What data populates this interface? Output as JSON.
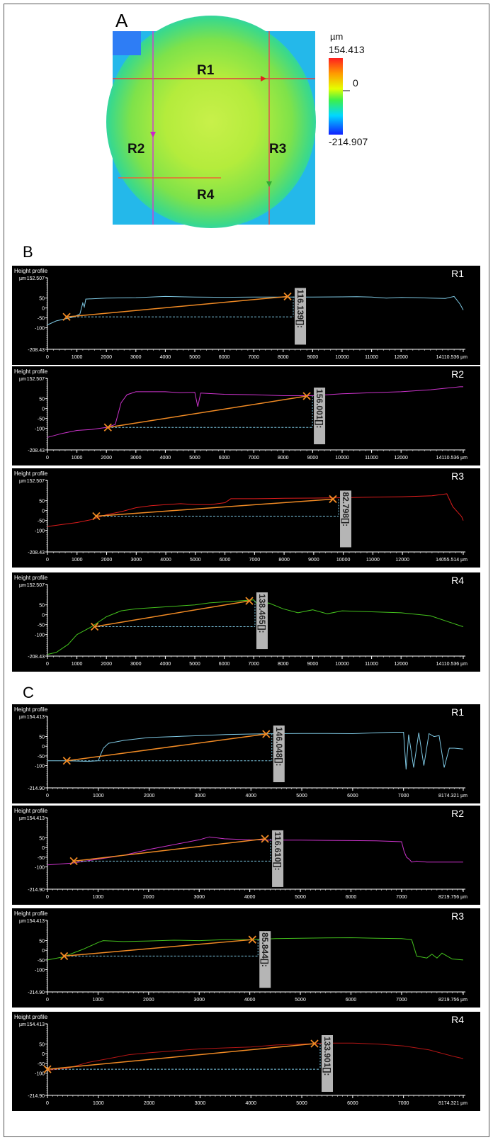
{
  "panels": {
    "a": "A",
    "b": "B",
    "c": "C"
  },
  "heightmap": {
    "unit": "µm",
    "max": "154.413",
    "zero": "0",
    "min": "-214.907",
    "labels": [
      "R1",
      "R2",
      "R3",
      "R4"
    ]
  },
  "common": {
    "title": "Height profile",
    "unit": "µm"
  },
  "chart_data": [
    {
      "type": "line",
      "id": "B-R1",
      "label": "R1",
      "color": "#7ec8e3",
      "ylim": [
        -208.43,
        152.507
      ],
      "ytick_labels": [
        "152.507",
        "50",
        "0",
        "-50",
        "-100",
        "-208.43"
      ],
      "xlim": [
        0,
        14110.536
      ],
      "xticks": [
        0,
        1000,
        2000,
        3000,
        4000,
        5000,
        6000,
        7000,
        8000,
        9000,
        10000,
        11000,
        12000
      ],
      "x_end_label": "14110.536 µm",
      "x": [
        0,
        300,
        600,
        900,
        1100,
        1200,
        1250,
        1300,
        2000,
        3000,
        4000,
        5000,
        6000,
        7000,
        8000,
        9000,
        10000,
        10500,
        11000,
        11500,
        12000,
        12500,
        13000,
        13500,
        13800,
        14000,
        14110
      ],
      "y": [
        -85,
        -65,
        -55,
        -45,
        -30,
        25,
        5,
        45,
        50,
        52,
        58,
        55,
        54,
        55,
        55,
        55,
        56,
        57,
        55,
        50,
        53,
        52,
        50,
        48,
        58,
        20,
        -10
      ],
      "markers": {
        "p1": [
          650,
          -45
        ],
        "p2": [
          8150,
          58
        ]
      },
      "delta_label": "116.139[]:"
    },
    {
      "type": "line",
      "id": "B-R2",
      "label": "R2",
      "color": "#cc33cc",
      "ylim": [
        -208.43,
        152.507
      ],
      "ytick_labels": [
        "152.507",
        "50",
        "0",
        "-50",
        "-100",
        "-208.43"
      ],
      "xlim": [
        0,
        14110.536
      ],
      "xticks": [
        0,
        1000,
        2000,
        3000,
        4000,
        5000,
        6000,
        7000,
        8000,
        9000,
        10000,
        11000,
        12000
      ],
      "x_end_label": "14110.536 µm",
      "x": [
        0,
        500,
        1000,
        1500,
        2000,
        2300,
        2500,
        2700,
        3000,
        4000,
        4500,
        5000,
        5100,
        5200,
        6000,
        7000,
        8000,
        9000,
        10000,
        11000,
        12000,
        13000,
        14000,
        14110
      ],
      "y": [
        -145,
        -125,
        -110,
        -105,
        -95,
        -80,
        30,
        70,
        85,
        85,
        80,
        82,
        10,
        78,
        72,
        70,
        65,
        65,
        75,
        80,
        85,
        95,
        110,
        110
      ],
      "markers": {
        "p1": [
          2050,
          -95
        ],
        "p2": [
          8800,
          63
        ]
      },
      "delta_label": "156.001[]:"
    },
    {
      "type": "line",
      "id": "B-R3",
      "label": "R3",
      "color": "#dd1c1c",
      "ylim": [
        -208.43,
        152.507
      ],
      "ytick_labels": [
        "152.507",
        "50",
        "0",
        "-50",
        "-100",
        "-208.43"
      ],
      "xlim": [
        0,
        14055.514
      ],
      "xticks": [
        0,
        1000,
        2000,
        3000,
        4000,
        5000,
        6000,
        7000,
        8000,
        9000,
        10000,
        11000,
        12000
      ],
      "x_end_label": "14055.514 µm",
      "x": [
        0,
        500,
        1000,
        1500,
        2000,
        2500,
        3000,
        3500,
        4000,
        4500,
        5000,
        5500,
        6000,
        6200,
        7000,
        8000,
        9000,
        10000,
        11000,
        12000,
        13000,
        13500,
        13700,
        14000,
        14055
      ],
      "y": [
        -80,
        -70,
        -60,
        -45,
        -20,
        -5,
        15,
        25,
        30,
        35,
        30,
        30,
        40,
        60,
        60,
        62,
        63,
        65,
        68,
        70,
        75,
        85,
        20,
        -30,
        -50
      ],
      "markers": {
        "p1": [
          1650,
          -28
        ],
        "p2": [
          9650,
          58
        ]
      },
      "delta_label": "82.798[]:"
    },
    {
      "type": "line",
      "id": "B-R4",
      "label": "R4",
      "color": "#44c21d",
      "ylim": [
        -208.43,
        152.507
      ],
      "ytick_labels": [
        "152.507",
        "50",
        "0",
        "-50",
        "-100",
        "-208.43"
      ],
      "xlim": [
        0,
        14110.536
      ],
      "xticks": [
        0,
        1000,
        2000,
        3000,
        4000,
        5000,
        6000,
        7000,
        8000,
        9000,
        10000,
        11000,
        12000
      ],
      "x_end_label": "14110.536 µm",
      "x": [
        0,
        300,
        700,
        1000,
        1500,
        2000,
        2500,
        3000,
        3500,
        4000,
        4500,
        5000,
        5500,
        6000,
        6500,
        7000,
        7300,
        7500,
        8000,
        8500,
        9000,
        9500,
        10000,
        11000,
        12000,
        13000,
        14000,
        14110
      ],
      "y": [
        -200,
        -190,
        -150,
        -100,
        -60,
        -10,
        20,
        30,
        35,
        40,
        45,
        50,
        60,
        65,
        70,
        75,
        20,
        60,
        30,
        10,
        25,
        5,
        20,
        15,
        10,
        -5,
        -55,
        -60
      ],
      "markers": {
        "p1": [
          1600,
          -60
        ],
        "p2": [
          6850,
          70
        ]
      },
      "delta_label": "138.465[]:"
    },
    {
      "type": "line",
      "id": "C-R1",
      "label": "R1",
      "color": "#7ec8e3",
      "ylim": [
        -214.907,
        154.413
      ],
      "ytick_labels": [
        "154.413",
        "50",
        "0",
        "-50",
        "-100",
        "-214.90"
      ],
      "xlim": [
        0,
        8174.321
      ],
      "xticks": [
        0,
        1000,
        2000,
        3000,
        4000,
        5000,
        6000,
        7000
      ],
      "x_end_label": "8174.321 µm",
      "x": [
        0,
        400,
        800,
        1000,
        1050,
        1100,
        1200,
        1500,
        2000,
        2500,
        3000,
        3500,
        4000,
        4500,
        5000,
        5500,
        6000,
        6500,
        6800,
        7000,
        7050,
        7100,
        7200,
        7300,
        7400,
        7500,
        7600,
        7700,
        7800,
        7900,
        8000,
        8174
      ],
      "y": [
        -75,
        -75,
        -78,
        -75,
        -40,
        -10,
        15,
        30,
        45,
        50,
        55,
        60,
        63,
        65,
        66,
        66,
        65,
        70,
        72,
        72,
        -120,
        60,
        -110,
        70,
        -100,
        65,
        50,
        55,
        -110,
        -10,
        -10,
        -15
      ],
      "markers": {
        "p1": [
          380,
          -75
        ],
        "p2": [
          4300,
          63
        ]
      },
      "delta_label": "146.048[]:"
    },
    {
      "type": "line",
      "id": "C-R2",
      "label": "R2",
      "color": "#cc33cc",
      "ylim": [
        -214.907,
        154.413
      ],
      "ytick_labels": [
        "154.413",
        "50",
        "0",
        "-50",
        "-100",
        "-214.90"
      ],
      "xlim": [
        0,
        8219.756
      ],
      "xticks": [
        0,
        1000,
        2000,
        3000,
        4000,
        5000,
        6000,
        7000
      ],
      "x_end_label": "8219.756 µm",
      "x": [
        0,
        500,
        1000,
        1500,
        2000,
        2500,
        3000,
        3200,
        3500,
        4000,
        4500,
        5000,
        5500,
        6000,
        6500,
        7000,
        7050,
        7100,
        7150,
        7200,
        7300,
        7500,
        8000,
        8219
      ],
      "y": [
        -90,
        -80,
        -60,
        -40,
        -10,
        15,
        40,
        55,
        45,
        40,
        38,
        38,
        37,
        36,
        35,
        30,
        -20,
        -50,
        -60,
        -75,
        -70,
        -75,
        -75,
        -75
      ],
      "markers": {
        "p1": [
          520,
          -70
        ],
        "p2": [
          4300,
          45
        ]
      },
      "delta_label": "116.610[]:"
    },
    {
      "type": "line",
      "id": "C-R3",
      "label": "R3",
      "color": "#44c21d",
      "ylim": [
        -214.907,
        154.413
      ],
      "ytick_labels": [
        "154.413",
        "50",
        "0",
        "-50",
        "-100",
        "-214.90"
      ],
      "xlim": [
        0,
        8219.756
      ],
      "xticks": [
        0,
        1000,
        2000,
        3000,
        4000,
        5000,
        6000,
        7000
      ],
      "x_end_label": "8219.756 µm",
      "x": [
        0,
        300,
        700,
        1000,
        1100,
        1500,
        2000,
        2500,
        3000,
        3500,
        4000,
        4500,
        5000,
        5500,
        6000,
        6500,
        7000,
        7200,
        7300,
        7500,
        7600,
        7700,
        7800,
        8000,
        8219
      ],
      "y": [
        -50,
        -35,
        5,
        40,
        50,
        45,
        48,
        52,
        50,
        55,
        55,
        60,
        62,
        64,
        65,
        62,
        60,
        55,
        -30,
        -40,
        -20,
        -40,
        -15,
        -45,
        -50
      ],
      "markers": {
        "p1": [
          330,
          -30
        ],
        "p2": [
          4050,
          55
        ]
      },
      "delta_label": "85.844[]:"
    },
    {
      "type": "line",
      "id": "C-R4",
      "label": "R4",
      "color": "#b31515",
      "ylim": [
        -214.907,
        154.413
      ],
      "ytick_labels": [
        "154.413",
        "50",
        "0",
        "-50",
        "-100",
        "-214.90"
      ],
      "xlim": [
        0,
        8174.321
      ],
      "xticks": [
        0,
        1000,
        2000,
        3000,
        4000,
        5000,
        6000,
        7000
      ],
      "x_end_label": "8174.321 µm",
      "x": [
        0,
        400,
        800,
        1200,
        1600,
        2000,
        2500,
        3000,
        3500,
        4000,
        4500,
        5000,
        5500,
        6000,
        6500,
        7000,
        7500,
        8000,
        8174
      ],
      "y": [
        -85,
        -75,
        -45,
        -25,
        -5,
        5,
        15,
        25,
        30,
        35,
        45,
        50,
        55,
        55,
        50,
        40,
        20,
        -15,
        -25
      ],
      "markers": {
        "p1": [
          0,
          -80
        ],
        "p2": [
          5250,
          52
        ]
      },
      "delta_label": "133.901[]:"
    }
  ]
}
